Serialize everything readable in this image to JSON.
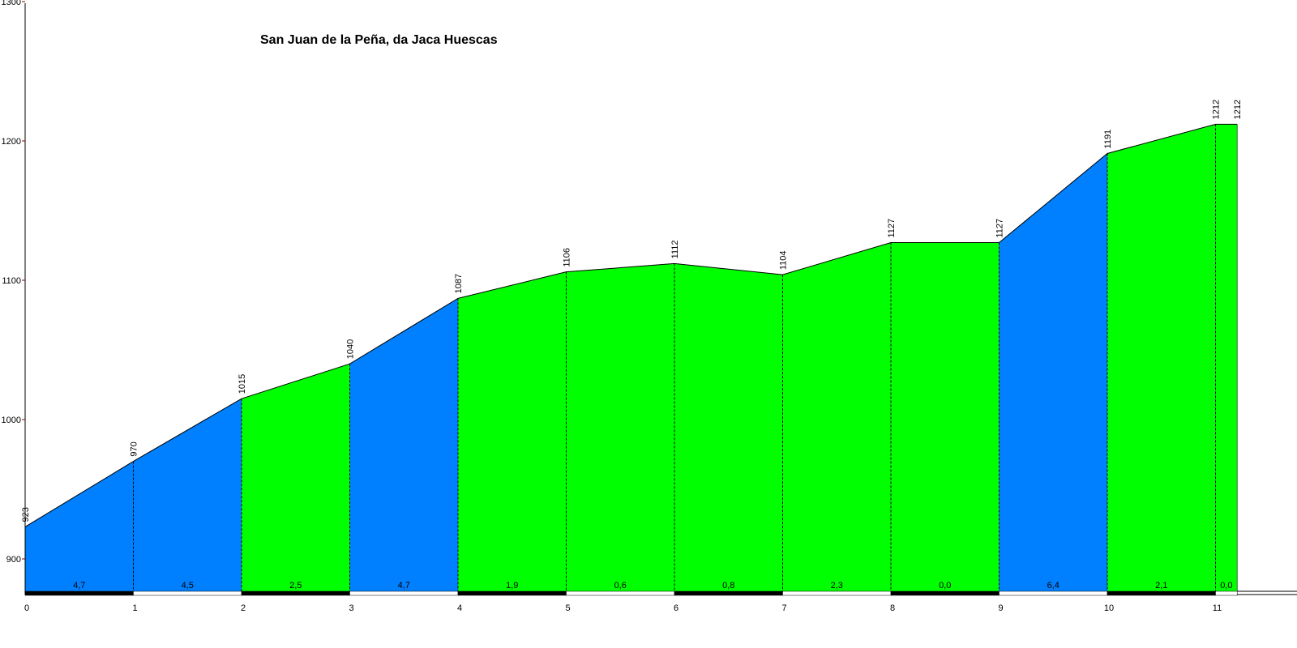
{
  "chart_data": {
    "type": "area",
    "title": "San Juan de la Peña, da Jaca Huescas",
    "xlabel": "",
    "ylabel": "",
    "xlim": [
      0,
      11.2
    ],
    "ylim": [
      880,
      1300
    ],
    "yticks": [
      900,
      1000,
      1100,
      1200,
      1300
    ],
    "xticks": [
      0,
      1,
      2,
      3,
      4,
      5,
      6,
      7,
      8,
      9,
      10,
      11
    ],
    "points": [
      {
        "x": 0,
        "y": 923
      },
      {
        "x": 1,
        "y": 970
      },
      {
        "x": 2,
        "y": 1015
      },
      {
        "x": 3,
        "y": 1040
      },
      {
        "x": 4,
        "y": 1087
      },
      {
        "x": 5,
        "y": 1106
      },
      {
        "x": 6,
        "y": 1112
      },
      {
        "x": 7,
        "y": 1104
      },
      {
        "x": 8,
        "y": 1127
      },
      {
        "x": 9,
        "y": 1127
      },
      {
        "x": 10,
        "y": 1191
      },
      {
        "x": 11,
        "y": 1212
      },
      {
        "x": 11.2,
        "y": 1212
      }
    ],
    "segments": [
      {
        "x0": 0,
        "x1": 1,
        "gradient": "4,7",
        "color": "#0080ff"
      },
      {
        "x0": 1,
        "x1": 2,
        "gradient": "4,5",
        "color": "#0080ff"
      },
      {
        "x0": 2,
        "x1": 3,
        "gradient": "2,5",
        "color": "#00ff00"
      },
      {
        "x0": 3,
        "x1": 4,
        "gradient": "4,7",
        "color": "#0080ff"
      },
      {
        "x0": 4,
        "x1": 5,
        "gradient": "1,9",
        "color": "#00ff00"
      },
      {
        "x0": 5,
        "x1": 6,
        "gradient": "0,6",
        "color": "#00ff00"
      },
      {
        "x0": 6,
        "x1": 7,
        "gradient": "0,8",
        "color": "#00ff00"
      },
      {
        "x0": 7,
        "x1": 8,
        "gradient": "2,3",
        "color": "#00ff00"
      },
      {
        "x0": 8,
        "x1": 9,
        "gradient": "0,0",
        "color": "#00ff00"
      },
      {
        "x0": 9,
        "x1": 10,
        "gradient": "6,4",
        "color": "#0080ff"
      },
      {
        "x0": 10,
        "x1": 11,
        "gradient": "2,1",
        "color": "#00ff00"
      },
      {
        "x0": 11,
        "x1": 11.2,
        "gradient": "0,0",
        "color": "#00ff00"
      }
    ],
    "grid": false,
    "colors": {
      "steep": "#0080ff",
      "gentle": "#00ff00",
      "outline": "#000000",
      "ytick_mark": "#8b0000"
    }
  }
}
